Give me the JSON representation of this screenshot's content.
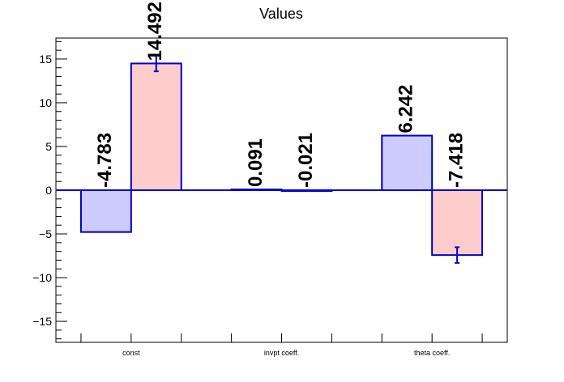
{
  "chart_data": {
    "type": "bar",
    "title": "Values",
    "xlabel": "",
    "ylabel": "",
    "categories": [
      "const",
      "invpt coeff.",
      "theta coeff."
    ],
    "ylim": [
      -17.4,
      17.4
    ],
    "y_ticks": [
      -15,
      -10,
      -5,
      0,
      5,
      10,
      15
    ],
    "grid": false,
    "series": [
      {
        "color": "#ccccff",
        "values": [
          -4.783,
          0.091,
          6.242
        ],
        "labels": [
          "-4.783",
          "0.091",
          "6.242"
        ],
        "errors": [
          0,
          0,
          0
        ]
      },
      {
        "color": "#ffcccc",
        "values": [
          14.492,
          -0.021,
          -7.418
        ],
        "labels": [
          "14.492",
          "-0.021",
          "-7.418"
        ],
        "errors": [
          0.9,
          0,
          0.9
        ]
      }
    ],
    "bar_edge_color": "#0000cc",
    "zero_line_color": "#0000cc"
  }
}
